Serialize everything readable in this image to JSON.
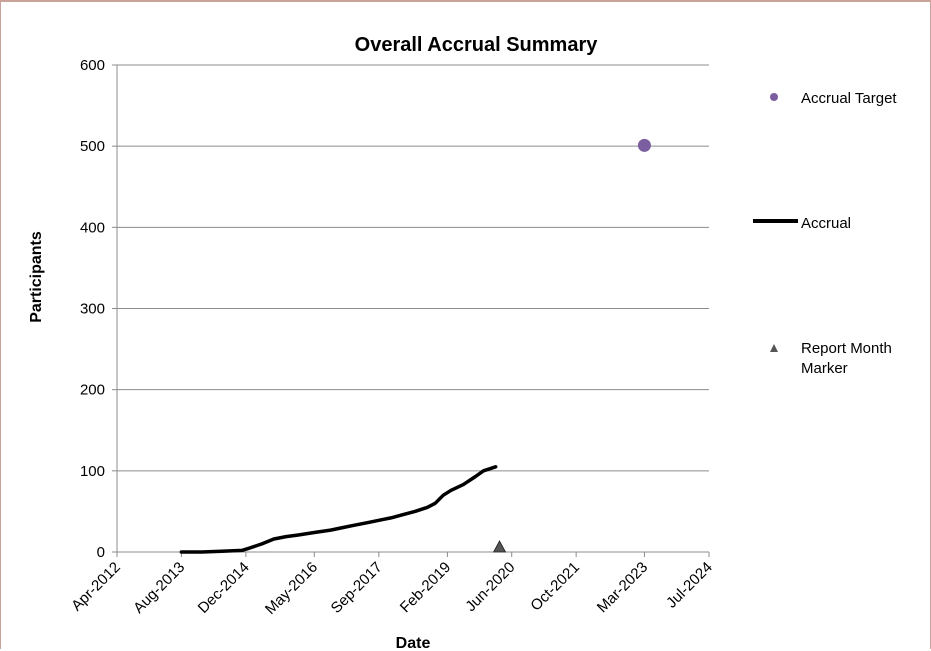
{
  "chart_data": {
    "type": "line",
    "title": "Overall Accrual Summary",
    "xlabel": "Date",
    "ylabel": "Participants",
    "ylim": [
      0,
      600
    ],
    "yticks": [
      0,
      100,
      200,
      300,
      400,
      500,
      600
    ],
    "xlim": [
      "2012-04-01",
      "2024-07-01"
    ],
    "xticks": [
      "2012-04-01",
      "2013-08-01",
      "2014-12-01",
      "2016-05-01",
      "2017-09-01",
      "2019-02-01",
      "2020-06-01",
      "2021-10-01",
      "2023-03-01",
      "2024-07-01"
    ],
    "xtick_labels": [
      "Apr-2012",
      "Aug-2013",
      "Dec-2014",
      "May-2016",
      "Sep-2017",
      "Feb-2019",
      "Jun-2020",
      "Oct-2021",
      "Mar-2023",
      "Jul-2024"
    ],
    "grid": "horizontal",
    "legend_position": "right",
    "series": [
      {
        "name": "Accrual",
        "kind": "line",
        "color": "#000000",
        "points": [
          [
            "2013-08-01",
            0
          ],
          [
            "2014-01-01",
            0
          ],
          [
            "2014-06-01",
            1
          ],
          [
            "2014-11-01",
            2
          ],
          [
            "2015-01-01",
            5
          ],
          [
            "2015-04-01",
            10
          ],
          [
            "2015-07-01",
            16
          ],
          [
            "2015-10-01",
            19
          ],
          [
            "2016-01-01",
            21
          ],
          [
            "2016-05-01",
            24
          ],
          [
            "2016-09-01",
            27
          ],
          [
            "2016-12-01",
            30
          ],
          [
            "2017-03-01",
            33
          ],
          [
            "2017-06-01",
            36
          ],
          [
            "2017-09-01",
            39
          ],
          [
            "2017-12-01",
            42
          ],
          [
            "2018-03-01",
            46
          ],
          [
            "2018-06-01",
            50
          ],
          [
            "2018-09-01",
            55
          ],
          [
            "2018-11-01",
            60
          ],
          [
            "2019-01-01",
            70
          ],
          [
            "2019-03-01",
            76
          ],
          [
            "2019-06-01",
            83
          ],
          [
            "2019-09-01",
            93
          ],
          [
            "2019-11-01",
            100
          ],
          [
            "2020-02-01",
            105
          ]
        ]
      },
      {
        "name": "Accrual Target",
        "kind": "point",
        "color": "#7a5ea0",
        "points": [
          [
            "2023-03-01",
            501
          ]
        ]
      },
      {
        "name": "Report Month Marker",
        "kind": "triangle",
        "color": "#555555",
        "points": [
          [
            "2020-03-01",
            0
          ]
        ]
      }
    ]
  },
  "legend": {
    "items": [
      {
        "label": "Accrual Target",
        "symbol": "circle",
        "color": "#7a5ea0"
      },
      {
        "label": "Accrual",
        "symbol": "line",
        "color": "#000000"
      },
      {
        "label_lines": [
          "Report Month",
          "Marker"
        ],
        "symbol": "triangle",
        "color": "#555555"
      }
    ]
  }
}
